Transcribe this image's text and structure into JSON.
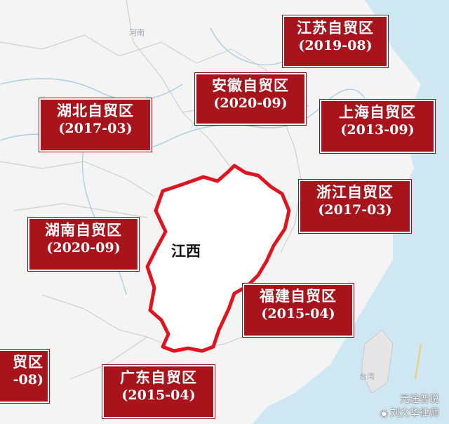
{
  "map": {
    "province_label": "江西",
    "place_labels": {
      "henan": "河南",
      "taiwan": "台湾"
    },
    "colors": {
      "zone_fill": "#a8141c",
      "border": "#e0141e",
      "sea": "#cfe7f3",
      "land": "#f4f4f4"
    }
  },
  "zones": [
    {
      "id": "jiangsu",
      "name": "江苏自贸区",
      "date": "(2019-08)"
    },
    {
      "id": "anhui",
      "name": "安徽自贸区",
      "date": "(2020-09)"
    },
    {
      "id": "hubei",
      "name": "湖北自贸区",
      "date": "(2017-03)"
    },
    {
      "id": "shanghai",
      "name": "上海自贸区",
      "date": "(2013-09)"
    },
    {
      "id": "zhejiang",
      "name": "浙江自贸区",
      "date": "(2017-03)"
    },
    {
      "id": "hunan",
      "name": "湖南自贸区",
      "date": "(2020-09)"
    },
    {
      "id": "fujian",
      "name": "福建自贸区",
      "date": "(2015-04)"
    },
    {
      "id": "guangdong",
      "name": "广东自贸区",
      "date": "(2015-04)"
    },
    {
      "id": "cut_off",
      "name": "贸区",
      "date": "-08)"
    }
  ],
  "watermark": {
    "line1": "元途普说",
    "line2": "刘文华律师",
    "icon": "weibo-icon"
  }
}
